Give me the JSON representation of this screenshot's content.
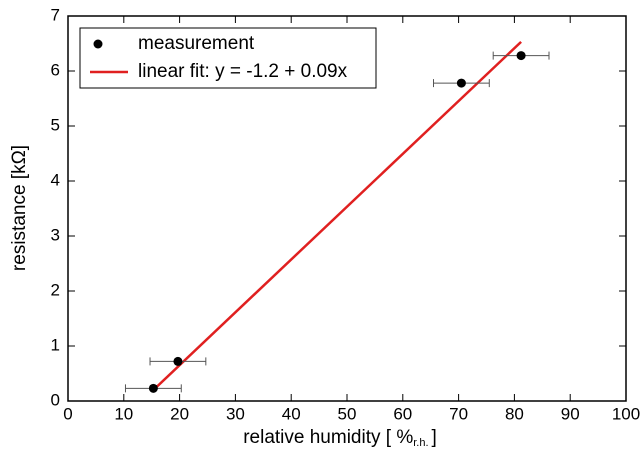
{
  "chart_data": {
    "type": "scatter",
    "x_label": [
      "relative humidity [ %",
      "r.h.",
      "]"
    ],
    "y_label": "resistance [kΩ]",
    "xlim": [
      0,
      100
    ],
    "ylim": [
      0,
      7
    ],
    "xticks": [
      0,
      10,
      20,
      30,
      40,
      50,
      60,
      70,
      80,
      90,
      100
    ],
    "yticks": [
      0,
      1,
      2,
      3,
      4,
      5,
      6,
      7
    ],
    "legend": "upper left",
    "series": [
      {
        "name": "measurement",
        "type": "scatter",
        "color": "#000000",
        "x": [
          15.3,
          19.7,
          70.5,
          81.2
        ],
        "values": [
          0.23,
          0.72,
          5.78,
          6.28
        ],
        "xerr": [
          5,
          5,
          5,
          5
        ]
      },
      {
        "name": "linear fit: y = -1.2 + 0.09x",
        "type": "line",
        "color": "#e02020",
        "x": [
          15.3,
          81.2
        ],
        "values": [
          0.2,
          6.53
        ]
      }
    ]
  }
}
